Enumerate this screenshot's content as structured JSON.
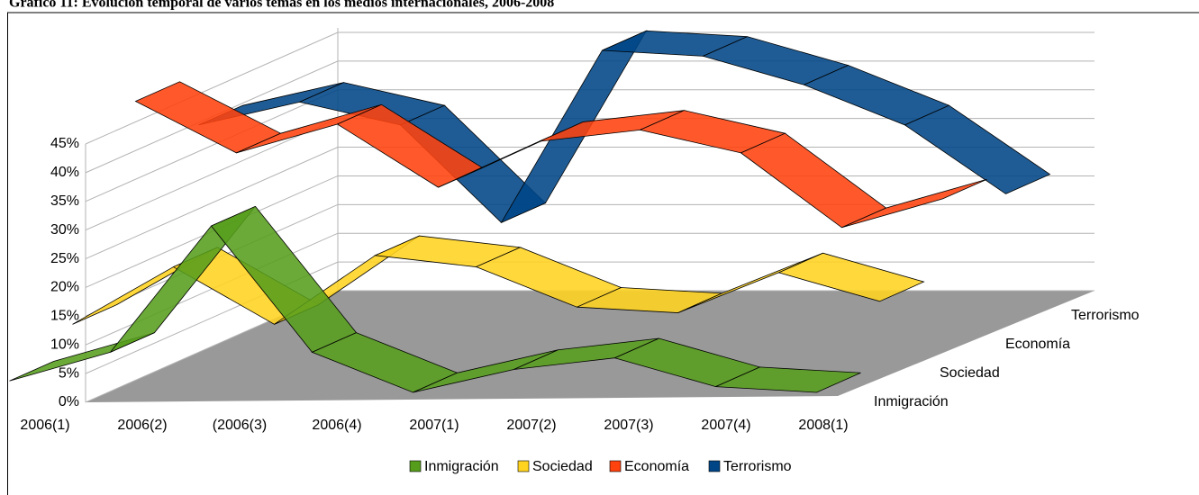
{
  "chart_data": {
    "type": "ribbon3d",
    "title": "Gráfico 11: Evolución temporal de varios temas en los medios internacionales, 2006-2008",
    "categories": [
      "2006(1)",
      "2006(2)",
      "(2006(3)",
      "2006(4)",
      "2007(1)",
      "2007(2)",
      "2007(3)",
      "2007(4)",
      "2008(1)"
    ],
    "series": [
      {
        "name": "Inmigración",
        "color": "#579d1c",
        "values": [
          3,
          8,
          30,
          8,
          1,
          5,
          7,
          2,
          1
        ]
      },
      {
        "name": "Sociedad",
        "color": "#ffd320",
        "values": [
          8,
          18,
          8,
          20,
          18,
          11,
          10,
          17,
          12
        ]
      },
      {
        "name": "Economía",
        "color": "#ff420e",
        "values": [
          42,
          33,
          38,
          27,
          35,
          37,
          33,
          20,
          25
        ]
      },
      {
        "name": "Terrorismo",
        "color": "#004586",
        "values": [
          33,
          37,
          33,
          16,
          46,
          45,
          40,
          33,
          21
        ]
      }
    ],
    "ylim": [
      0,
      45
    ],
    "yticks": [
      {
        "value": 0,
        "label": "0%"
      },
      {
        "value": 5,
        "label": "5%"
      },
      {
        "value": 10,
        "label": "10%"
      },
      {
        "value": 15,
        "label": "15%"
      },
      {
        "value": 20,
        "label": "20%"
      },
      {
        "value": 25,
        "label": "25%"
      },
      {
        "value": 30,
        "label": "30%"
      },
      {
        "value": 35,
        "label": "35%"
      },
      {
        "value": 40,
        "label": "40%"
      },
      {
        "value": 45,
        "label": "45%"
      }
    ],
    "grid": true
  }
}
